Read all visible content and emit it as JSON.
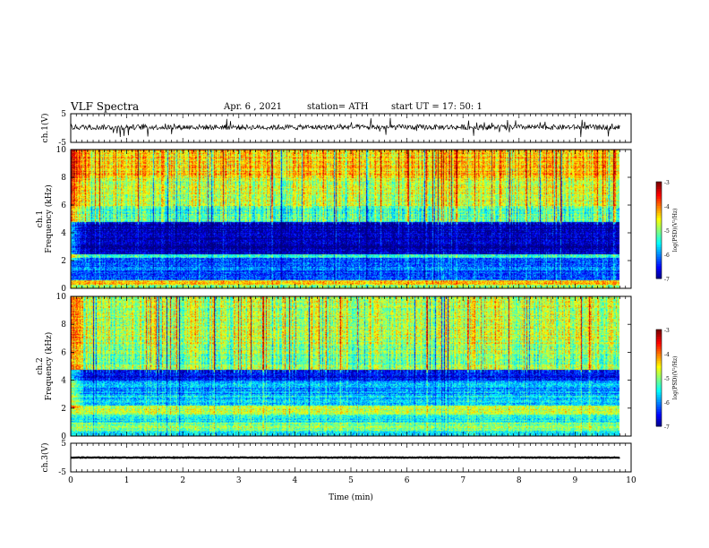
{
  "header": {
    "title": "VLF Spectra",
    "date": "Apr. 6 , 2021",
    "station": "station= ATH",
    "start": "start  UT =   17: 50: 1"
  },
  "chart_data": [
    {
      "type": "line",
      "name_label": "ch.1(V)",
      "ylim": [
        -5,
        5
      ],
      "yticks": [
        "5",
        "-5"
      ],
      "baseline": 0.3,
      "noise_amplitude": 1.8
    },
    {
      "type": "heatmap",
      "ylabel_top": "ch.1",
      "ylabel": "Frequency (kHz)",
      "ylim": [
        0,
        10
      ],
      "yticks": [
        "0",
        "2",
        "4",
        "6",
        "8",
        "10"
      ],
      "colorbar": {
        "label": "log(PSD)(V²/Hz)",
        "range": [
          -7,
          -3
        ],
        "ticks": [
          "-3",
          "-4",
          "-5",
          "-6",
          "-7"
        ]
      },
      "bands_kHz": [
        {
          "from": 0.0,
          "to": 0.3,
          "level": 0.55
        },
        {
          "from": 0.3,
          "to": 0.6,
          "level": 0.72
        },
        {
          "from": 0.6,
          "to": 2.2,
          "level": 0.22
        },
        {
          "from": 2.2,
          "to": 2.5,
          "level": 0.38
        },
        {
          "from": 2.5,
          "to": 4.8,
          "level": 0.05
        },
        {
          "from": 4.8,
          "to": 6.0,
          "level": 0.45
        },
        {
          "from": 6.0,
          "to": 8.0,
          "level": 0.58
        },
        {
          "from": 8.0,
          "to": 10.0,
          "level": 0.68
        }
      ]
    },
    {
      "type": "heatmap",
      "ylabel_top": "ch.2",
      "ylabel": "Frequency (kHz)",
      "ylim": [
        0,
        10
      ],
      "yticks": [
        "0",
        "2",
        "4",
        "6",
        "8",
        "10"
      ],
      "colorbar": {
        "label": "log(PSD)(V²/Hz)",
        "range": [
          -7,
          -3
        ],
        "ticks": [
          "-3",
          "-4",
          "-5",
          "-6",
          "-7"
        ]
      },
      "bands_kHz": [
        {
          "from": 0.0,
          "to": 0.4,
          "level": 0.4
        },
        {
          "from": 0.4,
          "to": 1.0,
          "level": 0.5
        },
        {
          "from": 1.0,
          "to": 1.6,
          "level": 0.4
        },
        {
          "from": 1.6,
          "to": 2.2,
          "level": 0.58
        },
        {
          "from": 2.2,
          "to": 3.0,
          "level": 0.35
        },
        {
          "from": 3.0,
          "to": 4.0,
          "level": 0.28
        },
        {
          "from": 4.0,
          "to": 4.8,
          "level": 0.1
        },
        {
          "from": 4.8,
          "to": 6.5,
          "level": 0.5
        },
        {
          "from": 6.5,
          "to": 10.0,
          "level": 0.56
        }
      ]
    },
    {
      "type": "line",
      "name_label": "ch.3(V)",
      "ylim": [
        -5,
        5
      ],
      "yticks": [
        "5",
        "-5"
      ],
      "baseline": 0.0,
      "noise_amplitude": 0.2
    }
  ],
  "xaxis": {
    "label": "Time (min)",
    "xlim": [
      0,
      10
    ],
    "ticks": [
      "0",
      "1",
      "2",
      "3",
      "4",
      "5",
      "6",
      "7",
      "8",
      "9",
      "10"
    ],
    "data_end": 9.8
  },
  "colors": {
    "colormap": [
      "#00007f",
      "#0000ff",
      "#00ffff",
      "#7fff7f",
      "#ffff00",
      "#ff7f00",
      "#ff0000",
      "#7f0000"
    ]
  }
}
